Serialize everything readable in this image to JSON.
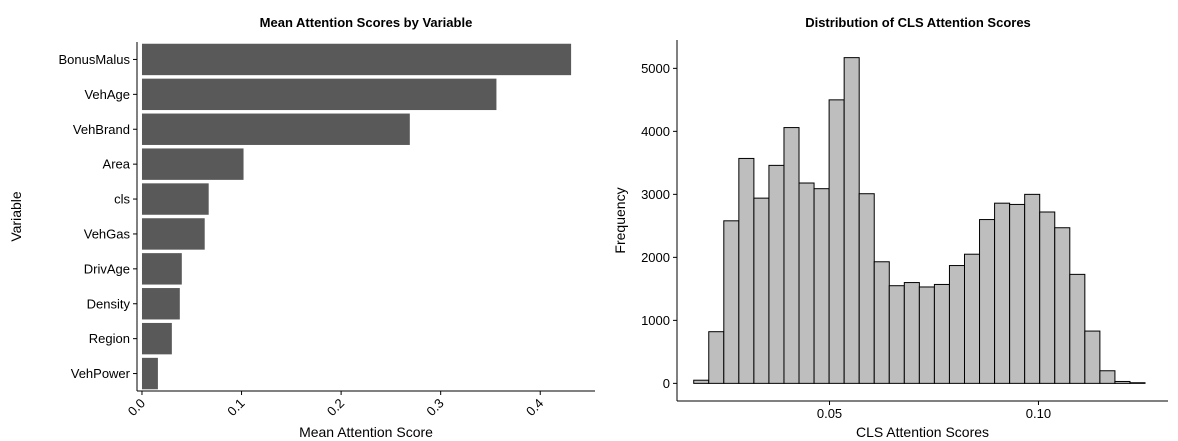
{
  "chart_data": [
    {
      "type": "bar",
      "orientation": "horizontal",
      "title": "Mean Attention Scores by Variable",
      "xlabel": "Mean Attention Score",
      "ylabel": "Variable",
      "categories": [
        "BonusMalus",
        "VehAge",
        "VehBrand",
        "Area",
        "cls",
        "VehGas",
        "DrivAge",
        "Density",
        "Region",
        "VehPower"
      ],
      "values": [
        0.431,
        0.356,
        0.269,
        0.102,
        0.067,
        0.063,
        0.04,
        0.038,
        0.03,
        0.016
      ],
      "xlim": [
        -0.005,
        0.455
      ],
      "xticks": [
        0.0,
        0.1,
        0.2,
        0.3,
        0.4
      ],
      "xtick_labels": [
        "0.0",
        "0.1",
        "0.2",
        "0.3",
        "0.4"
      ],
      "bar_color": "#595959",
      "grid": false
    },
    {
      "type": "histogram",
      "title": "Distribution of CLS Attention Scores",
      "xlabel": "CLS Attention Scores",
      "ylabel": "Frequency",
      "bin_start": 0.0175,
      "bin_width": 0.0036,
      "counts": [
        50,
        820,
        2580,
        3570,
        2940,
        3460,
        4060,
        3180,
        3090,
        4500,
        5170,
        3010,
        1930,
        1550,
        1600,
        1530,
        1570,
        1870,
        2050,
        2600,
        2860,
        2840,
        3000,
        2720,
        2470,
        1730,
        830,
        200,
        30,
        10
      ],
      "xlim": [
        0.0135,
        0.131
      ],
      "ylim": [
        -280,
        5450
      ],
      "xticks": [
        0.05,
        0.1
      ],
      "xtick_labels": [
        "0.05",
        "0.10"
      ],
      "yticks": [
        0,
        1000,
        2000,
        3000,
        4000,
        5000
      ],
      "ytick_labels": [
        "0",
        "1000",
        "2000",
        "3000",
        "4000",
        "5000"
      ],
      "fill_color": "#bebebe",
      "edge_color": "#000000",
      "grid": false
    }
  ]
}
